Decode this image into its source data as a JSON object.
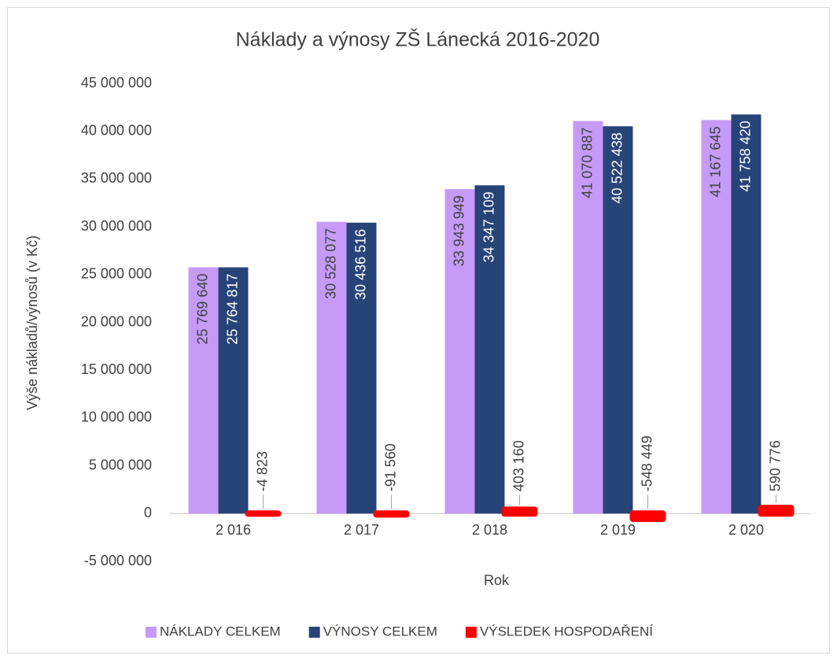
{
  "chart_data": {
    "type": "bar",
    "title": "Náklady a výnosy ZŠ Lánecká 2016-2020",
    "x_label": "Rok",
    "y_label": "Výše nákladů/výnosů (v Kč)",
    "categories": [
      "2 016",
      "2 017",
      "2 018",
      "2 019",
      "2 020"
    ],
    "series": [
      {
        "name": "NÁKLADY CELKEM",
        "color": "#c59bf7",
        "values": [
          25769640,
          30528077,
          33943949,
          41070887,
          41167645
        ],
        "value_labels": [
          "25 769 640",
          "30 528 077",
          "33 943 949",
          "41 070 887",
          "41 167 645"
        ]
      },
      {
        "name": "VÝNOSY CELKEM",
        "color": "#264478",
        "values": [
          25764817,
          30436516,
          34347109,
          40522438,
          41758420
        ],
        "value_labels": [
          "25 764 817",
          "30 436 516",
          "34 347 109",
          "40 522 438",
          "41 758 420"
        ]
      },
      {
        "name": "VÝSLEDEK HOSPODAŘENÍ",
        "color": "#ff0000",
        "values": [
          -4823,
          -91560,
          403160,
          -548449,
          590776
        ],
        "value_labels": [
          "-4 823",
          "-91 560",
          "403 160",
          "-548 449",
          "590 776"
        ]
      }
    ],
    "ylim": [
      -5000000,
      45000000
    ],
    "yticks": [
      {
        "value": -5000000,
        "label": "-5 000 000"
      },
      {
        "value": 0,
        "label": "0"
      },
      {
        "value": 5000000,
        "label": "5 000 000"
      },
      {
        "value": 10000000,
        "label": "10 000 000"
      },
      {
        "value": 15000000,
        "label": "15 000 000"
      },
      {
        "value": 20000000,
        "label": "20 000 000"
      },
      {
        "value": 25000000,
        "label": "25 000 000"
      },
      {
        "value": 30000000,
        "label": "30 000 000"
      },
      {
        "value": 35000000,
        "label": "35 000 000"
      },
      {
        "value": 40000000,
        "label": "40 000 000"
      },
      {
        "value": 45000000,
        "label": "45 000 000"
      }
    ],
    "grid": false,
    "legend": "bottom"
  }
}
